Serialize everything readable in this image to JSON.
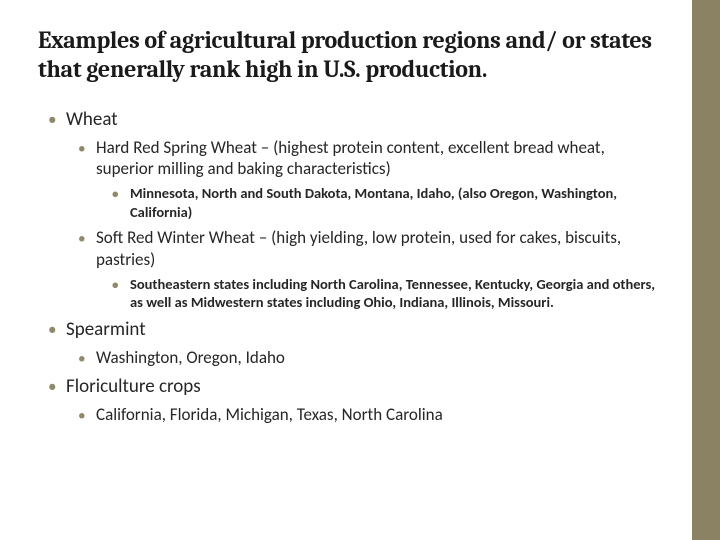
{
  "colors": {
    "sidebar": "#8a8262",
    "bullet": "#8f886a",
    "text": "#262626",
    "title": "#1a1a1a",
    "background": "#ffffff"
  },
  "typography": {
    "title_font": "Cambria",
    "body_font": "Calibri",
    "title_pt": 24,
    "lvl1_pt": 19,
    "lvl2_pt": 17,
    "lvl3_pt": 14.5,
    "lvl3_weight": 600
  },
  "title": "Examples of agricultural production regions and/ or states that generally rank high in U.S. production.",
  "items": {
    "wheat": {
      "label": "Wheat",
      "hard_red": {
        "desc": "Hard Red Spring Wheat – (highest protein content, excellent bread wheat, superior milling and baking characteristics)",
        "states": "Minnesota, North and South Dakota, Montana, Idaho, (also Oregon, Washington, California)"
      },
      "soft_red": {
        "desc": "Soft Red Winter Wheat – (high yielding, low protein, used for cakes, biscuits, pastries)",
        "states": "Southeastern states including North Carolina, Tennessee, Kentucky, Georgia and others, as well as Midwestern states including Ohio, Indiana, Illinois, Missouri."
      }
    },
    "spearmint": {
      "label": "Spearmint",
      "states": "Washington, Oregon, Idaho"
    },
    "floriculture": {
      "label": "Floriculture crops",
      "states": "California, Florida, Michigan, Texas, North Carolina"
    }
  }
}
